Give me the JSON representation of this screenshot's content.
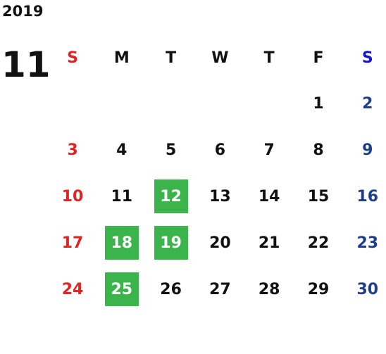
{
  "year": "2019",
  "month": "11",
  "weekdays": [
    "S",
    "M",
    "T",
    "W",
    "T",
    "F",
    "S"
  ],
  "days": [
    1,
    2,
    3,
    4,
    5,
    6,
    7,
    8,
    9,
    10,
    11,
    12,
    13,
    14,
    15,
    16,
    17,
    18,
    19,
    20,
    21,
    22,
    23,
    24,
    25,
    26,
    27,
    28,
    29,
    30
  ],
  "highlighted": [
    12,
    18,
    19,
    25
  ],
  "highlight_color": "#3bb44b",
  "sunday_color": "#e02424",
  "saturday_header_color": "#1414c8",
  "saturday_color": "#1f3f8c"
}
